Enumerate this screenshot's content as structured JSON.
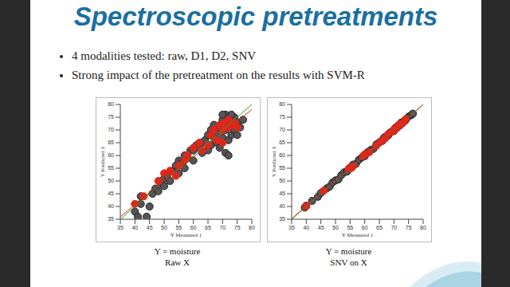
{
  "title": "Spectroscopic pretreatments",
  "bullets": [
    "4 modalities tested: raw, D1, D2, SNV",
    "Strong impact of the pretreatment on the results with SVM-R"
  ],
  "chart_data": [
    {
      "type": "scatter",
      "x_label": "Y Measured 1",
      "y_label": "Y Predicted 1",
      "xlim": [
        35,
        80
      ],
      "ylim": [
        35,
        80
      ],
      "xticks": [
        35,
        40,
        45,
        50,
        55,
        60,
        65,
        70,
        75,
        80
      ],
      "yticks": [
        35,
        40,
        45,
        50,
        55,
        60,
        65,
        70,
        75,
        80
      ],
      "caption": [
        "Y = moisture",
        "Raw X"
      ],
      "series": [
        {
          "type": "scatter",
          "color": "#555555",
          "marker": "circle",
          "points": [
            [
              40,
              38
            ],
            [
              41,
              36
            ],
            [
              42,
              41
            ],
            [
              42,
              44
            ],
            [
              44,
              36
            ],
            [
              45,
              40
            ],
            [
              46,
              45
            ],
            [
              47,
              47
            ],
            [
              48,
              46
            ],
            [
              49,
              49
            ],
            [
              50,
              51
            ],
            [
              50,
              48
            ],
            [
              51,
              52
            ],
            [
              52,
              50
            ],
            [
              53,
              54
            ],
            [
              54,
              56
            ],
            [
              55,
              53
            ],
            [
              55,
              58
            ],
            [
              56,
              57
            ],
            [
              57,
              55
            ],
            [
              57,
              60
            ],
            [
              58,
              59
            ],
            [
              59,
              62
            ],
            [
              60,
              58
            ],
            [
              60,
              62
            ],
            [
              61,
              64
            ],
            [
              62,
              63
            ],
            [
              63,
              61
            ],
            [
              63,
              65
            ],
            [
              64,
              66
            ],
            [
              65,
              62
            ],
            [
              65,
              68
            ],
            [
              66,
              64
            ],
            [
              66,
              70
            ],
            [
              67,
              67
            ],
            [
              67,
              72
            ],
            [
              68,
              65
            ],
            [
              68,
              69
            ],
            [
              69,
              71
            ],
            [
              69,
              63
            ],
            [
              70,
              74
            ],
            [
              70,
              67
            ],
            [
              71,
              70
            ],
            [
              71,
              76
            ],
            [
              72,
              66
            ],
            [
              72,
              73
            ],
            [
              73,
              71
            ],
            [
              73,
              68
            ],
            [
              74,
              75
            ],
            [
              74,
              70
            ],
            [
              75,
              73
            ],
            [
              75,
              68
            ],
            [
              76,
              71
            ],
            [
              77,
              74
            ],
            [
              71,
              61
            ],
            [
              72,
              60
            ],
            [
              70,
              76
            ],
            [
              73,
              76
            ]
          ]
        },
        {
          "type": "scatter",
          "color": "#e0261b",
          "marker": "circle",
          "points": [
            [
              40,
              41
            ],
            [
              43,
              44
            ],
            [
              48,
              50
            ],
            [
              50,
              53
            ],
            [
              52,
              54
            ],
            [
              54,
              52
            ],
            [
              55,
              56
            ],
            [
              57,
              58
            ],
            [
              58,
              60
            ],
            [
              60,
              63
            ],
            [
              62,
              65
            ],
            [
              63,
              62
            ],
            [
              65,
              64
            ],
            [
              66,
              68
            ],
            [
              67,
              70
            ],
            [
              68,
              66
            ],
            [
              69,
              72
            ],
            [
              70,
              70
            ],
            [
              71,
              73
            ],
            [
              72,
              71
            ],
            [
              72,
              74
            ],
            [
              73,
              72
            ],
            [
              74,
              73
            ],
            [
              75,
              71
            ],
            [
              70,
              65
            ]
          ]
        },
        {
          "type": "line",
          "color": "#2ca02c",
          "x": [
            35,
            80
          ],
          "values": [
            35,
            80
          ]
        },
        {
          "type": "line",
          "color": "#e0261b",
          "x": [
            35,
            80
          ],
          "values": [
            36,
            78
          ]
        }
      ]
    },
    {
      "type": "scatter",
      "x_label": "Y Measured 1",
      "y_label": "Y Predicted 1",
      "xlim": [
        35,
        80
      ],
      "ylim": [
        35,
        80
      ],
      "xticks": [
        35,
        40,
        45,
        50,
        55,
        60,
        65,
        70,
        75,
        80
      ],
      "yticks": [
        35,
        40,
        45,
        50,
        55,
        60,
        65,
        70,
        75,
        80
      ],
      "caption": [
        "Y = moisture",
        "SNV on X"
      ],
      "series": [
        {
          "type": "scatter",
          "color": "#555555",
          "marker": "circle",
          "points": [
            [
              39.5,
              39.6
            ],
            [
              40,
              40.3
            ],
            [
              42,
              42.2
            ],
            [
              44,
              43.8
            ],
            [
              45,
              45.3
            ],
            [
              47,
              47.1
            ],
            [
              48,
              47.8
            ],
            [
              49,
              49.4
            ],
            [
              50,
              50.2
            ],
            [
              51,
              50.6
            ],
            [
              52,
              52.3
            ],
            [
              53,
              53.4
            ],
            [
              54,
              53.7
            ],
            [
              55,
              55.2
            ],
            [
              56,
              56.4
            ],
            [
              57,
              56.7
            ],
            [
              58,
              58.3
            ],
            [
              59,
              59.2
            ],
            [
              60,
              59.7
            ],
            [
              61,
              61.3
            ],
            [
              62,
              62.1
            ],
            [
              63,
              62.6
            ],
            [
              64,
              64.3
            ],
            [
              65,
              65.1
            ],
            [
              66,
              65.7
            ],
            [
              66.5,
              66.8
            ],
            [
              67,
              67.3
            ],
            [
              68,
              67.8
            ],
            [
              68.5,
              68.7
            ],
            [
              69,
              69.2
            ],
            [
              70,
              69.6
            ],
            [
              70.5,
              70.8
            ],
            [
              71,
              71.2
            ],
            [
              72,
              71.7
            ],
            [
              72.5,
              72.9
            ],
            [
              73,
              73.1
            ],
            [
              74,
              73.8
            ],
            [
              75,
              75.2
            ],
            [
              76,
              75.9
            ],
            [
              76.5,
              76.4
            ]
          ]
        },
        {
          "type": "scatter",
          "color": "#e0261b",
          "marker": "circle",
          "points": [
            [
              40,
              40.1
            ],
            [
              46,
              46.2
            ],
            [
              54.5,
              54.8
            ],
            [
              55.5,
              55.1
            ],
            [
              56,
              55.8
            ],
            [
              59.5,
              59.8
            ],
            [
              60,
              60.4
            ],
            [
              61.5,
              61.2
            ],
            [
              64,
              63.8
            ],
            [
              65.5,
              65.6
            ],
            [
              67,
              66.7
            ],
            [
              68,
              68.3
            ],
            [
              69.5,
              69.4
            ],
            [
              70,
              70.2
            ],
            [
              71,
              70.7
            ],
            [
              71.5,
              71.9
            ],
            [
              72,
              72.3
            ],
            [
              73,
              72.6
            ],
            [
              74,
              74.2
            ]
          ]
        },
        {
          "type": "line",
          "color": "#2ca02c",
          "x": [
            35,
            80
          ],
          "values": [
            35,
            80
          ]
        },
        {
          "type": "line",
          "color": "#e0261b",
          "x": [
            35,
            80
          ],
          "values": [
            35.2,
            79.9
          ]
        }
      ]
    }
  ]
}
